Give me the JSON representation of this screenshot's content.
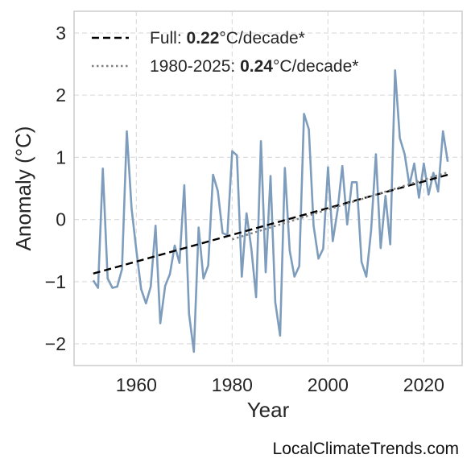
{
  "chart_data": {
    "type": "line",
    "xlabel": "Year",
    "ylabel": "Anomaly (°C)",
    "xlim": [
      1947,
      2028
    ],
    "ylim": [
      -2.35,
      3.35
    ],
    "xticks": [
      1960,
      1980,
      2000,
      2020
    ],
    "yticks": [
      -2,
      -1,
      0,
      1,
      2,
      3
    ],
    "ytick_labels": [
      "−2",
      "−1",
      "0",
      "1",
      "2",
      "3"
    ],
    "grid": true,
    "legend_position": "top-left",
    "x": [
      1951,
      1952,
      1953,
      1954,
      1955,
      1956,
      1957,
      1958,
      1959,
      1960,
      1961,
      1962,
      1963,
      1964,
      1965,
      1966,
      1967,
      1968,
      1969,
      1970,
      1971,
      1972,
      1973,
      1974,
      1975,
      1976,
      1977,
      1978,
      1979,
      1980,
      1981,
      1982,
      1983,
      1984,
      1985,
      1986,
      1987,
      1988,
      1989,
      1990,
      1991,
      1992,
      1993,
      1994,
      1995,
      1996,
      1997,
      1998,
      1999,
      2000,
      2001,
      2002,
      2003,
      2004,
      2005,
      2006,
      2007,
      2008,
      2009,
      2010,
      2011,
      2012,
      2013,
      2014,
      2015,
      2016,
      2017,
      2018,
      2019,
      2020,
      2021,
      2022,
      2023,
      2024,
      2025
    ],
    "series": [
      {
        "values": [
          -0.98,
          -1.1,
          0.82,
          -0.95,
          -1.1,
          -1.08,
          -0.8,
          1.42,
          0.18,
          -0.5,
          -1.12,
          -1.35,
          -1.08,
          -0.1,
          -1.67,
          -1.07,
          -0.88,
          -0.42,
          -0.7,
          0.55,
          -1.52,
          -2.13,
          -0.13,
          -0.95,
          -0.74,
          0.72,
          0.46,
          -0.22,
          -0.25,
          1.1,
          1.03,
          -0.92,
          0.1,
          -0.47,
          -1.25,
          1.26,
          -0.85,
          0.7,
          -1.33,
          -1.87,
          0.83,
          -0.5,
          -0.92,
          -0.75,
          1.7,
          1.45,
          -0.1,
          -0.63,
          -0.47,
          0.84,
          -0.35,
          0.15,
          0.86,
          -0.08,
          0.6,
          0.6,
          -0.68,
          -0.92,
          -0.18,
          1.05,
          -0.46,
          0.38,
          -0.4,
          2.4,
          1.31,
          1.05,
          0.55,
          0.9,
          0.35,
          0.9,
          0.4,
          0.75,
          0.45,
          1.42,
          0.93
        ],
        "color": "#7e9dbd"
      }
    ],
    "trend_lines": [
      {
        "name_prefix": "Full: ",
        "name_value": "0.22",
        "name_suffix": "°C/decade*",
        "x": [
          1951,
          2025
        ],
        "y": [
          -0.87,
          0.72
        ],
        "style": "dashed",
        "color": "#000000"
      },
      {
        "name_prefix": "1980-2025: ",
        "name_value": "0.24",
        "name_suffix": "°C/decade*",
        "x": [
          1980,
          2025
        ],
        "y": [
          -0.32,
          0.76
        ],
        "style": "dotted",
        "color": "#808080"
      }
    ]
  },
  "watermark": "LocalClimateTrends.com"
}
